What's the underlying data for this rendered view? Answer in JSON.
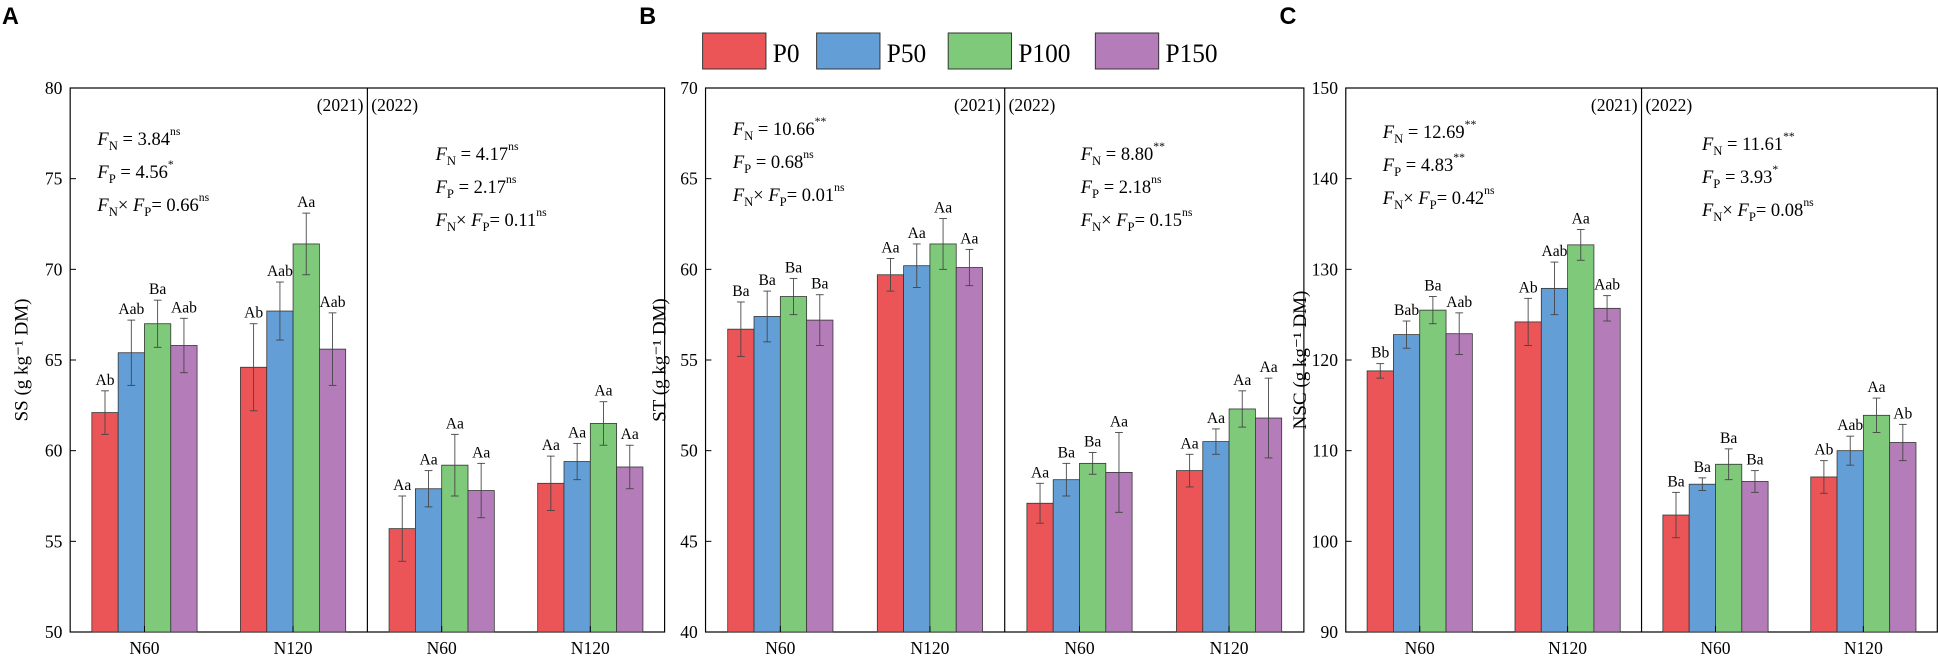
{
  "legend": {
    "items": [
      {
        "label": "P0",
        "color": "#EC5558"
      },
      {
        "label": "P50",
        "color": "#639FD6"
      },
      {
        "label": "P100",
        "color": "#7FC97A"
      },
      {
        "label": "P150",
        "color": "#B47DB9"
      }
    ]
  },
  "chart_data": [
    {
      "type": "bar",
      "panel": "A",
      "ylabel": "SS (g kg⁻¹ DM)",
      "ylim": [
        50,
        80
      ],
      "yticks": [
        50,
        55,
        60,
        65,
        70,
        75,
        80
      ],
      "groups": [
        {
          "year": "(2021)",
          "stats": [
            {
              "var": "N",
              "value": "3.84",
              "sig": "ns"
            },
            {
              "var": "P",
              "value": "4.56",
              "sig": "*"
            },
            {
              "var": "NxP",
              "value": "0.66",
              "sig": "ns"
            }
          ],
          "categories": [
            {
              "name": "N60",
              "values": [
                62.1,
                65.4,
                67.0,
                65.8
              ],
              "errors": [
                1.2,
                1.8,
                1.3,
                1.5
              ],
              "labels": [
                "Ab",
                "Aab",
                "Ba",
                "Aab"
              ]
            },
            {
              "name": "N120",
              "values": [
                64.6,
                67.7,
                71.4,
                65.6
              ],
              "errors": [
                2.4,
                1.6,
                1.7,
                2.0
              ],
              "labels": [
                "Ab",
                "Aab",
                "Aa",
                "Aab"
              ]
            }
          ]
        },
        {
          "year": "(2022)",
          "stats": [
            {
              "var": "N",
              "value": "4.17",
              "sig": "ns"
            },
            {
              "var": "P",
              "value": "2.17",
              "sig": "ns"
            },
            {
              "var": "NxP",
              "value": "0.11",
              "sig": "ns"
            }
          ],
          "categories": [
            {
              "name": "N60",
              "values": [
                55.7,
                57.9,
                59.2,
                57.8
              ],
              "errors": [
                1.8,
                1.0,
                1.7,
                1.5
              ],
              "labels": [
                "Aa",
                "Aa",
                "Aa",
                "Aa"
              ]
            },
            {
              "name": "N120",
              "values": [
                58.2,
                59.4,
                61.5,
                59.1
              ],
              "errors": [
                1.5,
                1.0,
                1.2,
                1.2
              ],
              "labels": [
                "Aa",
                "Aa",
                "Aa",
                "Aa"
              ]
            }
          ]
        }
      ]
    },
    {
      "type": "bar",
      "panel": "B",
      "ylabel": "ST (g kg⁻¹ DM)",
      "ylim": [
        40,
        70
      ],
      "yticks": [
        40,
        45,
        50,
        55,
        60,
        65,
        70
      ],
      "groups": [
        {
          "year": "(2021)",
          "stats": [
            {
              "var": "N",
              "value": "10.66",
              "sig": "**"
            },
            {
              "var": "P",
              "value": "0.68",
              "sig": "ns"
            },
            {
              "var": "NxP",
              "value": "0.01",
              "sig": "ns"
            }
          ],
          "categories": [
            {
              "name": "N60",
              "values": [
                56.7,
                57.4,
                58.5,
                57.2
              ],
              "errors": [
                1.5,
                1.4,
                1.0,
                1.4
              ],
              "labels": [
                "Ba",
                "Ba",
                "Ba",
                "Ba"
              ]
            },
            {
              "name": "N120",
              "values": [
                59.7,
                60.2,
                61.4,
                60.1
              ],
              "errors": [
                0.9,
                1.2,
                1.4,
                1.0
              ],
              "labels": [
                "Aa",
                "Aa",
                "Aa",
                "Aa"
              ]
            }
          ]
        },
        {
          "year": "(2022)",
          "stats": [
            {
              "var": "N",
              "value": "8.80",
              "sig": "**"
            },
            {
              "var": "P",
              "value": "2.18",
              "sig": "ns"
            },
            {
              "var": "NxP",
              "value": "0.15",
              "sig": "ns"
            }
          ],
          "categories": [
            {
              "name": "N60",
              "values": [
                47.1,
                48.4,
                49.3,
                48.8
              ],
              "errors": [
                1.1,
                0.9,
                0.6,
                2.2
              ],
              "labels": [
                "Aa",
                "Ba",
                "Ba",
                "Aa"
              ]
            },
            {
              "name": "N120",
              "values": [
                48.9,
                50.5,
                52.3,
                51.8
              ],
              "errors": [
                0.9,
                0.7,
                1.0,
                2.2
              ],
              "labels": [
                "Aa",
                "Aa",
                "Aa",
                "Aa"
              ]
            }
          ]
        }
      ]
    },
    {
      "type": "bar",
      "panel": "C",
      "ylabel": "NSC (g kg⁻¹ DM)",
      "ylim": [
        90,
        150
      ],
      "yticks": [
        90,
        100,
        110,
        120,
        130,
        140,
        150
      ],
      "groups": [
        {
          "year": "(2021)",
          "stats": [
            {
              "var": "N",
              "value": "12.69",
              "sig": "**"
            },
            {
              "var": "P",
              "value": "4.83",
              "sig": "**"
            },
            {
              "var": "NxP",
              "value": "0.42",
              "sig": "ns"
            }
          ],
          "categories": [
            {
              "name": "N60",
              "values": [
                118.8,
                122.8,
                125.5,
                122.9
              ],
              "errors": [
                0.8,
                1.5,
                1.5,
                2.3
              ],
              "labels": [
                "Bb",
                "Bab",
                "Ba",
                "Aab"
              ]
            },
            {
              "name": "N120",
              "values": [
                124.2,
                127.9,
                132.7,
                125.7
              ],
              "errors": [
                2.6,
                2.9,
                1.7,
                1.4
              ],
              "labels": [
                "Ab",
                "Aab",
                "Aa",
                "Aab"
              ]
            }
          ]
        },
        {
          "year": "(2022)",
          "stats": [
            {
              "var": "N",
              "value": "11.61",
              "sig": "**"
            },
            {
              "var": "P",
              "value": "3.93",
              "sig": "*"
            },
            {
              "var": "NxP",
              "value": "0.08",
              "sig": "ns"
            }
          ],
          "categories": [
            {
              "name": "N60",
              "values": [
                102.9,
                106.3,
                108.5,
                106.6
              ],
              "errors": [
                2.5,
                0.7,
                1.7,
                1.2
              ],
              "labels": [
                "Ba",
                "Ba",
                "Ba",
                "Ba"
              ]
            },
            {
              "name": "N120",
              "values": [
                107.1,
                110.0,
                113.9,
                110.9
              ],
              "errors": [
                1.8,
                1.6,
                1.9,
                2.0
              ],
              "labels": [
                "Ab",
                "Aab",
                "Aa",
                "Ab"
              ]
            }
          ]
        }
      ]
    }
  ]
}
